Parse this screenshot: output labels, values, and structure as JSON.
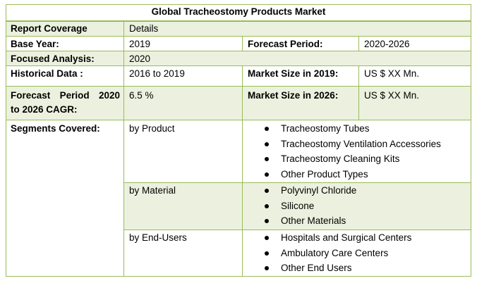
{
  "table": {
    "title": "Global Tracheostomy Products Market",
    "report_coverage": {
      "label": "Report Coverage",
      "value": "Details"
    },
    "base_year": {
      "label": "Base Year:",
      "value": "2019"
    },
    "forecast_period": {
      "label": "Forecast Period:",
      "value": "2020-2026"
    },
    "focused_analysis": {
      "label": "Focused Analysis:",
      "value": "2020"
    },
    "historical_data": {
      "label": "Historical Data :",
      "value": "2016 to 2019"
    },
    "market_size_2019": {
      "label": "Market Size in 2019:",
      "value": "US $ XX Mn."
    },
    "forecast_cagr": {
      "label_line1": "Forecast Period 2020",
      "label_line2": "to 2026 CAGR:",
      "value": "6.5 %"
    },
    "market_size_2026": {
      "label": "Market Size in 2026:",
      "value": "US $ XX Mn."
    },
    "segments": {
      "label": "Segments Covered:",
      "groups": [
        {
          "name": "by Product",
          "items": [
            "Tracheostomy Tubes",
            "Tracheostomy Ventilation Accessories",
            "Tracheostomy Cleaning Kits",
            "Other Product Types"
          ]
        },
        {
          "name": "by Material",
          "items": [
            "Polyvinyl Chloride",
            "Silicone",
            "Other Materials"
          ]
        },
        {
          "name": "by End-Users",
          "items": [
            "Hospitals and Surgical Centers",
            "Ambulatory Care Centers",
            "Other End Users"
          ]
        }
      ]
    }
  },
  "colors": {
    "border": "#9bbb59",
    "shade": "#ebf1de"
  }
}
